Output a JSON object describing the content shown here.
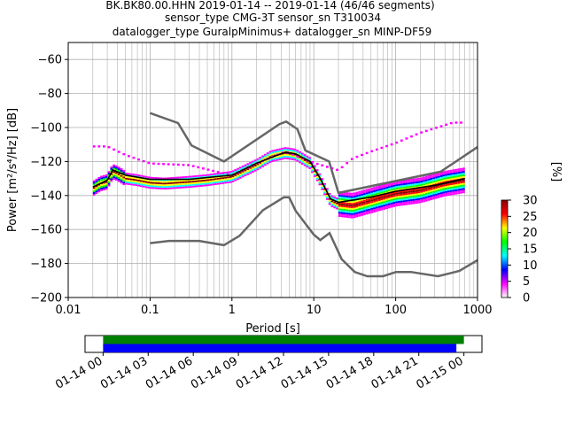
{
  "title_lines": [
    "BK.BK80.00.HHN   2019-01-14 -- 2019-01-14  (46/46 segments)",
    "sensor_type CMG-3T sensor_sn T310034",
    "datalogger_type GuralpMinimus+ datalogger_sn MINP-DF59"
  ],
  "chart_data": [
    {
      "type": "heatmap",
      "xlabel": "Period [s]",
      "ylabel": "Power [m²/s⁴/Hz] [dB]",
      "x_scale": "log",
      "xlim": [
        0.01,
        1000
      ],
      "ylim": [
        -200,
        -50
      ],
      "x_ticks": [
        {
          "v": 0.01,
          "label": "0.01"
        },
        {
          "v": 0.1,
          "label": "0.1"
        },
        {
          "v": 1,
          "label": "1"
        },
        {
          "v": 10,
          "label": "10"
        },
        {
          "v": 100,
          "label": "100"
        },
        {
          "v": 1000,
          "label": "1000"
        }
      ],
      "y_ticks": [
        -60,
        -80,
        -100,
        -120,
        -140,
        -160,
        -180,
        -200
      ],
      "y_tick_labels": [
        "−60",
        "−80",
        "−100",
        "−120",
        "−140",
        "−160",
        "−180",
        "−200"
      ],
      "grid": true,
      "colorbar": {
        "label": "[%]",
        "min": 0,
        "max": 30,
        "ticks": [
          0,
          5,
          10,
          15,
          20,
          25,
          30
        ],
        "colors": [
          "#ffffff",
          "#ff00ff",
          "#0000ff",
          "#00ffff",
          "#00ff00",
          "#ffff00",
          "#ff0000",
          "#8b0000"
        ]
      },
      "nhnm": [
        {
          "x": 0.1,
          "y": -91.5
        },
        {
          "x": 0.22,
          "y": -97.4
        },
        {
          "x": 0.32,
          "y": -110.5
        },
        {
          "x": 0.8,
          "y": -120
        },
        {
          "x": 3.8,
          "y": -98
        },
        {
          "x": 4.6,
          "y": -96.5
        },
        {
          "x": 6.3,
          "y": -101
        },
        {
          "x": 7.9,
          "y": -113.5
        },
        {
          "x": 15.4,
          "y": -120
        },
        {
          "x": 20,
          "y": -138.5
        },
        {
          "x": 354.8,
          "y": -126
        },
        {
          "x": 1000,
          "y": -111.5
        }
      ],
      "nlnm": [
        {
          "x": 0.1,
          "y": -168
        },
        {
          "x": 0.17,
          "y": -166.7
        },
        {
          "x": 0.4,
          "y": -166.7
        },
        {
          "x": 0.8,
          "y": -169.2
        },
        {
          "x": 1.24,
          "y": -163.7
        },
        {
          "x": 2.4,
          "y": -148.6
        },
        {
          "x": 4.3,
          "y": -141.1
        },
        {
          "x": 5,
          "y": -141.1
        },
        {
          "x": 6,
          "y": -149
        },
        {
          "x": 10,
          "y": -163
        },
        {
          "x": 12,
          "y": -166.2
        },
        {
          "x": 15.6,
          "y": -162.1
        },
        {
          "x": 21.9,
          "y": -177.5
        },
        {
          "x": 31.6,
          "y": -185
        },
        {
          "x": 45,
          "y": -187.5
        },
        {
          "x": 70,
          "y": -187.5
        },
        {
          "x": 101,
          "y": -185
        },
        {
          "x": 154,
          "y": -185
        },
        {
          "x": 328,
          "y": -187.5
        },
        {
          "x": 600,
          "y": -184.4
        },
        {
          "x": 1000,
          "y": -178
        }
      ],
      "mode_curve": [
        {
          "x": 0.02,
          "y": -136
        },
        {
          "x": 0.025,
          "y": -133
        },
        {
          "x": 0.03,
          "y": -132
        },
        {
          "x": 0.035,
          "y": -126
        },
        {
          "x": 0.04,
          "y": -127
        },
        {
          "x": 0.05,
          "y": -130
        },
        {
          "x": 0.07,
          "y": -131
        },
        {
          "x": 0.1,
          "y": -132.5
        },
        {
          "x": 0.15,
          "y": -133
        },
        {
          "x": 0.3,
          "y": -132
        },
        {
          "x": 0.5,
          "y": -131
        },
        {
          "x": 1,
          "y": -129
        },
        {
          "x": 2,
          "y": -122
        },
        {
          "x": 3,
          "y": -117
        },
        {
          "x": 4.5,
          "y": -115
        },
        {
          "x": 6,
          "y": -116
        },
        {
          "x": 9,
          "y": -121
        },
        {
          "x": 12,
          "y": -131
        },
        {
          "x": 16,
          "y": -143
        },
        {
          "x": 20,
          "y": -145
        },
        {
          "x": 30,
          "y": -146
        },
        {
          "x": 50,
          "y": -143
        },
        {
          "x": 100,
          "y": -139
        },
        {
          "x": 200,
          "y": -137
        },
        {
          "x": 400,
          "y": -133
        },
        {
          "x": 700,
          "y": -131
        }
      ],
      "mean_curve": [
        {
          "x": 0.02,
          "y": -135
        },
        {
          "x": 0.03,
          "y": -131
        },
        {
          "x": 0.035,
          "y": -125
        },
        {
          "x": 0.05,
          "y": -128
        },
        {
          "x": 0.1,
          "y": -130.5
        },
        {
          "x": 0.3,
          "y": -130.5
        },
        {
          "x": 1,
          "y": -128
        },
        {
          "x": 2,
          "y": -121
        },
        {
          "x": 4.5,
          "y": -114.5
        },
        {
          "x": 6,
          "y": -115.5
        },
        {
          "x": 9,
          "y": -120
        },
        {
          "x": 12,
          "y": -130
        },
        {
          "x": 16,
          "y": -142
        },
        {
          "x": 20,
          "y": -144
        },
        {
          "x": 50,
          "y": -141
        },
        {
          "x": 100,
          "y": -137.5
        },
        {
          "x": 300,
          "y": -134
        },
        {
          "x": 700,
          "y": -130
        }
      ],
      "outlier_curve": [
        {
          "x": 0.03,
          "y": -111
        },
        {
          "x": 0.05,
          "y": -116
        },
        {
          "x": 0.1,
          "y": -121
        },
        {
          "x": 0.3,
          "y": -122
        },
        {
          "x": 1,
          "y": -128
        },
        {
          "x": 2,
          "y": -121
        },
        {
          "x": 4.5,
          "y": -114
        },
        {
          "x": 9,
          "y": -120
        },
        {
          "x": 20,
          "y": -125
        },
        {
          "x": 30,
          "y": -118
        },
        {
          "x": 50,
          "y": -114
        },
        {
          "x": 100,
          "y": -109
        },
        {
          "x": 200,
          "y": -103
        },
        {
          "x": 500,
          "y": -97
        },
        {
          "x": 700,
          "y": -97
        }
      ]
    },
    {
      "type": "timeline",
      "x_tick_labels": [
        "01-14 00",
        "01-14 03",
        "01-14 06",
        "01-14 09",
        "01-14 12",
        "01-14 15",
        "01-14 18",
        "01-14 21",
        "01-15 00"
      ],
      "x_tick_hours": [
        0,
        3,
        6,
        9,
        12,
        15,
        18,
        21,
        24
      ],
      "xlim_hours": [
        -1.2,
        25.2
      ],
      "bars": [
        {
          "color": "#008000",
          "start_hour": 0,
          "end_hour": 24.0
        },
        {
          "color": "#0000ff",
          "start_hour": 0,
          "end_hour": 23.5
        }
      ]
    }
  ]
}
